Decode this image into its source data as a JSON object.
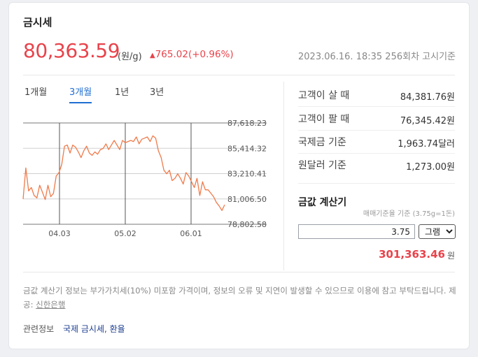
{
  "header": {
    "title": "금시세",
    "price": "80,363.59",
    "unit": "(원/g)",
    "change_arrow": "▲",
    "change": "765.02(+0.96%)",
    "timestamp": "2023.06.16. 18:35 256회차 고시기준"
  },
  "tabs": [
    {
      "label": "1개월",
      "active": false
    },
    {
      "label": "3개월",
      "active": true
    },
    {
      "label": "1년",
      "active": false
    },
    {
      "label": "3년",
      "active": false
    }
  ],
  "chart_data": {
    "type": "line",
    "x_tick_labels": [
      "04.03",
      "05.02",
      "06.01"
    ],
    "y_tick_labels": [
      "87,618.23",
      "85,414.32",
      "83,210.41",
      "81,006.50",
      "78,802.58"
    ],
    "ylim": [
      78802.58,
      87618.23
    ],
    "series": [
      {
        "color": "#f07a4a",
        "values": [
          81000,
          83700,
          81700,
          82000,
          81300,
          81100,
          82200,
          81600,
          80950,
          82200,
          81200,
          81500,
          83000,
          83300,
          84000,
          85600,
          85700,
          85000,
          85700,
          85500,
          85100,
          84600,
          85200,
          85600,
          85000,
          84800,
          85100,
          84900,
          85300,
          85400,
          85800,
          85300,
          85700,
          86100,
          85700,
          85300,
          86100,
          85900,
          86000,
          86100,
          86000,
          86400,
          85800,
          86200,
          86300,
          86400,
          86000,
          86500,
          86300,
          85200,
          84600,
          83500,
          83200,
          83500,
          82600,
          82800,
          83200,
          82800,
          82300,
          83300,
          83000,
          82500,
          82000,
          82800,
          81300,
          82500,
          81800,
          81800,
          81500,
          81200,
          80700,
          80400,
          80000,
          80500
        ]
      }
    ]
  },
  "rates": [
    {
      "label": "고객이 살 때",
      "value": "84,381.76원"
    },
    {
      "label": "고객이 팔 때",
      "value": "76,345.42원"
    },
    {
      "label": "국제금 기준",
      "value": "1,963.74달러"
    },
    {
      "label": "원달러 기준",
      "value": "1,273.00원"
    }
  ],
  "calculator": {
    "title": "금값 계산기",
    "note": "매매기준율 기준 (3.75g=1돈)",
    "input_value": "3.75",
    "unit_selected": "그램",
    "result": "301,363.46",
    "result_unit": "원"
  },
  "footer": {
    "note_prefix": "금값 계산기 정보는 부가가치세(10%) 미포함 가격이며, 정보의 오류 및 지연이 발생할 수 있으므로 이용에 참고 부탁드립니다. 제공: ",
    "provider": "신한은행",
    "related_label": "관련정보",
    "related_links": "국제 금시세, 환율"
  }
}
